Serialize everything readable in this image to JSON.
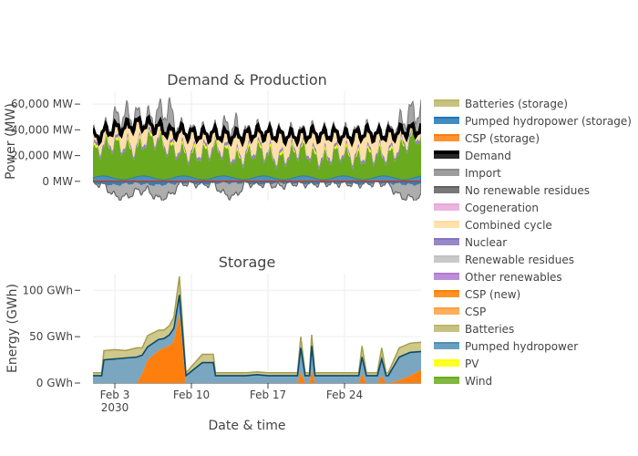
{
  "chart_data": [
    {
      "type": "area",
      "title": "Demand & Production",
      "ylabel": "Power (MW)",
      "ylim": [
        -15000,
        70000
      ],
      "yticks": [
        {
          "value": 0,
          "label": "0 MW"
        },
        {
          "value": 20000,
          "label": "20,000 MW"
        },
        {
          "value": 40000,
          "label": "40,000 MW"
        },
        {
          "value": 60000,
          "label": "60,000 MW"
        }
      ],
      "x_range_days": [
        1,
        31
      ],
      "series": [
        {
          "name": "Demand",
          "color": "#000000",
          "values": [
            33000,
            38000,
            41000,
            42000,
            45000,
            44000,
            42000,
            38000,
            39000,
            37000,
            36000,
            37000,
            36000,
            35000,
            36000,
            38000,
            37000,
            36000,
            35000,
            36000,
            37000,
            36000,
            37000,
            35000,
            36000,
            38000,
            36000,
            37000,
            38000,
            40000
          ]
        },
        {
          "name": "Import",
          "color": "#8c8c8c",
          "values": [
            0,
            0,
            8000,
            10000,
            6000,
            4000,
            12000,
            18000,
            0,
            0,
            0,
            0,
            6000,
            8000,
            0,
            0,
            0,
            0,
            0,
            0,
            0,
            0,
            0,
            0,
            0,
            0,
            0,
            0,
            6000,
            14000
          ]
        },
        {
          "name": "Wind",
          "color": "#6aaa1e",
          "values": [
            18000,
            22000,
            26000,
            24000,
            20000,
            28000,
            30000,
            22000,
            18000,
            16000,
            20000,
            22000,
            18000,
            14000,
            18000,
            20000,
            16000,
            14000,
            18000,
            20000,
            16000,
            15000,
            18000,
            16000,
            14000,
            18000,
            16000,
            15000,
            22000,
            30000
          ]
        },
        {
          "name": "Pumped hydropower (storage)",
          "color": "#1f77b4",
          "values": [
            -1000,
            -2000,
            -3000,
            -2000,
            -1500,
            -2500,
            -3000,
            -2000,
            -1500,
            -1000,
            -2000,
            -1500,
            -1000,
            -1500,
            -1000,
            -2000,
            -1500,
            -1000,
            -1500,
            -1000,
            -2000,
            -1000,
            -1500,
            -1000,
            -2000,
            -1500,
            -1000,
            -1500,
            -2000,
            -2500
          ]
        },
        {
          "name": "Batteries (storage)",
          "color": "#bdb76b",
          "values": [
            0,
            -500,
            -800,
            -500,
            0,
            -600,
            -900,
            -400,
            0,
            -300,
            -400,
            0,
            -300,
            -500,
            0,
            -400,
            0,
            -300,
            0,
            -500,
            0,
            -300,
            0,
            -400,
            0,
            -300,
            0,
            -500,
            -600,
            -700
          ]
        },
        {
          "name": "No renewable residues",
          "color": "#606060",
          "values": [
            0,
            0,
            -8000,
            -10000,
            -6000,
            -4000,
            -10000,
            -9000,
            0,
            0,
            0,
            0,
            -9000,
            -10000,
            0,
            0,
            0,
            -3000,
            0,
            0,
            0,
            0,
            0,
            0,
            0,
            0,
            0,
            0,
            -9000,
            -10000
          ]
        }
      ],
      "legend_position": "right"
    },
    {
      "type": "area",
      "title": "Storage",
      "ylabel": "Energy (GWh)",
      "xlabel": "Date & time",
      "ylim": [
        0,
        118
      ],
      "yticks": [
        {
          "value": 0,
          "label": "0 GWh"
        },
        {
          "value": 50,
          "label": "50 GWh"
        },
        {
          "value": 100,
          "label": "100 GWh"
        }
      ],
      "xticks": [
        {
          "day": 3,
          "label": "Feb 3",
          "sub": "2030"
        },
        {
          "day": 10,
          "label": "Feb 10",
          "sub": ""
        },
        {
          "day": 17,
          "label": "Feb 17",
          "sub": ""
        },
        {
          "day": 24,
          "label": "Feb 24",
          "sub": ""
        }
      ],
      "series": [
        {
          "name": "CSP (storage)",
          "color": "#ff7f0e",
          "x": [
            1,
            1.8,
            2,
            3,
            4,
            5,
            5.5,
            6,
            7,
            7.5,
            8,
            8.4,
            8.9,
            9.5,
            11,
            12,
            12.2,
            14,
            15,
            16,
            17,
            18,
            19,
            19.7,
            20,
            20.4,
            20.8,
            21,
            21.3,
            21.6,
            22,
            23,
            24,
            25,
            25.3,
            25.6,
            26,
            27,
            27.4,
            27.8,
            28,
            29,
            30,
            31
          ],
          "values": [
            0,
            0,
            0,
            0,
            0,
            0,
            10,
            25,
            35,
            38,
            40,
            45,
            75,
            0,
            0,
            0,
            0,
            0,
            0,
            0,
            0,
            0,
            0,
            0,
            12,
            0,
            0,
            14,
            0,
            0,
            0,
            0,
            0,
            0,
            0,
            10,
            0,
            0,
            8,
            0,
            0,
            3,
            8,
            14
          ]
        },
        {
          "name": "Pumped hydropower (storage)",
          "color": "#1f77b4",
          "x": [
            1,
            1.8,
            2,
            3,
            4,
            5,
            5.5,
            6,
            7,
            7.5,
            8,
            8.4,
            8.9,
            9.5,
            11,
            12,
            12.2,
            14,
            15,
            16,
            17,
            18,
            19,
            19.7,
            20,
            20.4,
            20.8,
            21,
            21.3,
            21.6,
            22,
            23,
            24,
            25,
            25.3,
            25.6,
            26,
            27,
            27.4,
            27.8,
            28,
            29,
            30,
            31
          ],
          "values": [
            8,
            8,
            25,
            26,
            27,
            28,
            20,
            14,
            12,
            10,
            12,
            14,
            20,
            8,
            22,
            22,
            8,
            8,
            8,
            9,
            8,
            8,
            8,
            8,
            26,
            8,
            8,
            26,
            8,
            8,
            8,
            8,
            8,
            8,
            8,
            18,
            8,
            8,
            18,
            8,
            8,
            25,
            25,
            20
          ]
        },
        {
          "name": "Batteries (storage)",
          "color": "#bdb76b",
          "x": [
            1,
            1.8,
            2,
            3,
            4,
            5,
            5.5,
            6,
            7,
            7.5,
            8,
            8.4,
            8.9,
            9.5,
            11,
            12,
            12.2,
            14,
            15,
            16,
            17,
            18,
            19,
            19.7,
            20,
            20.4,
            20.8,
            21,
            21.3,
            21.6,
            22,
            23,
            24,
            25,
            25.3,
            25.6,
            26,
            27,
            27.4,
            27.8,
            28,
            29,
            30,
            31
          ],
          "values": [
            3,
            3,
            10,
            10,
            8,
            10,
            8,
            12,
            10,
            9,
            10,
            12,
            20,
            3,
            9,
            9,
            3,
            3,
            3,
            3,
            3,
            3,
            3,
            3,
            12,
            3,
            3,
            12,
            3,
            3,
            3,
            3,
            3,
            3,
            3,
            12,
            3,
            3,
            12,
            3,
            3,
            10,
            10,
            10
          ]
        }
      ]
    }
  ],
  "legend": [
    {
      "name": "Batteries (storage)",
      "color": "#bdb76b"
    },
    {
      "name": "Pumped hydropower (storage)",
      "color": "#1f77b4"
    },
    {
      "name": "CSP (storage)",
      "color": "#ff7f0e"
    },
    {
      "name": "Demand",
      "color": "#000000"
    },
    {
      "name": "Import",
      "color": "#8c8c8c"
    },
    {
      "name": "No renewable residues",
      "color": "#606060"
    },
    {
      "name": "Cogeneration",
      "color": "#e7a8d8"
    },
    {
      "name": "Combined cycle",
      "color": "#ffdca0"
    },
    {
      "name": "Nuclear",
      "color": "#8473c0"
    },
    {
      "name": "Renewable residues",
      "color": "#c0c0c0"
    },
    {
      "name": "Other renewables",
      "color": "#b07ad0"
    },
    {
      "name": "CSP (new)",
      "color": "#ff7f00"
    },
    {
      "name": "CSP",
      "color": "#ffa040"
    },
    {
      "name": "Batteries",
      "color": "#bdb76b"
    },
    {
      "name": "Pumped hydropower",
      "color": "#4f8fb4"
    },
    {
      "name": "PV",
      "color": "#ffff00"
    },
    {
      "name": "Wind",
      "color": "#6aaa1e"
    }
  ]
}
